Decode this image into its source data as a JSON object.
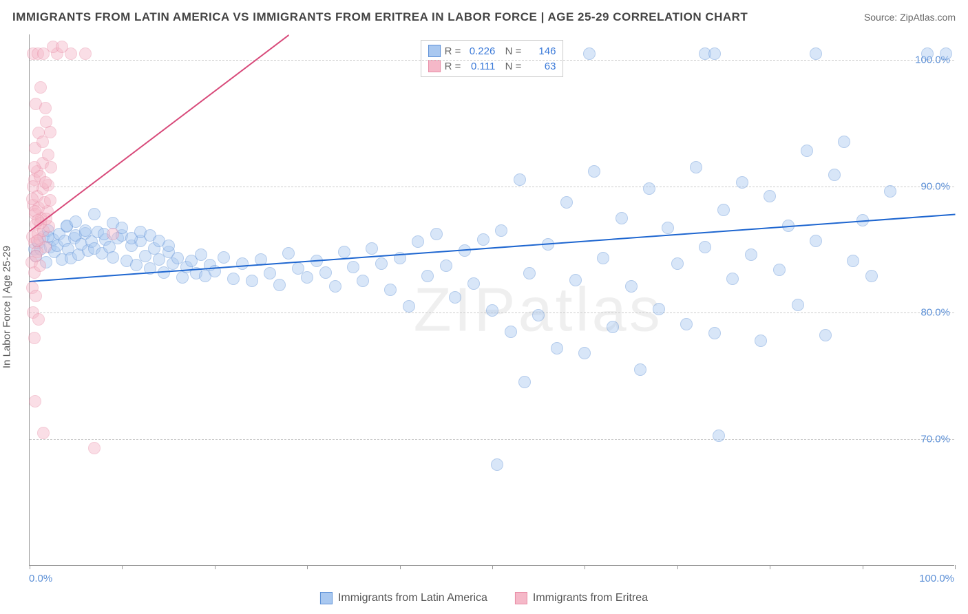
{
  "header": {
    "title": "IMMIGRANTS FROM LATIN AMERICA VS IMMIGRANTS FROM ERITREA IN LABOR FORCE | AGE 25-29 CORRELATION CHART",
    "source": "Source: ZipAtlas.com"
  },
  "chart": {
    "type": "scatter",
    "y_label": "In Labor Force | Age 25-29",
    "xlim": [
      0,
      100
    ],
    "ylim": [
      60,
      102
    ],
    "x_ticks": [
      0,
      10,
      20,
      30,
      40,
      50,
      60,
      70,
      80,
      90,
      100
    ],
    "y_ticks": [
      70,
      80,
      90,
      100
    ],
    "x_tick_labels": {
      "min": "0.0%",
      "max": "100.0%"
    },
    "y_tick_labels": [
      "70.0%",
      "80.0%",
      "90.0%",
      "100.0%"
    ],
    "grid_color": "#cccccc",
    "axis_color": "#999999",
    "background_color": "#ffffff",
    "marker_radius": 9,
    "marker_opacity": 0.45,
    "watermark": "ZIPatlas",
    "series": [
      {
        "name": "Immigrants from Latin America",
        "color_fill": "#a9c8f0",
        "color_stroke": "#5b8fd6",
        "trend": {
          "x1": 0,
          "y1": 82.5,
          "x2": 100,
          "y2": 87.8,
          "color": "#1e66d0",
          "width": 2,
          "dashed": false
        },
        "stats": {
          "R": "0.226",
          "N": "146"
        },
        "points": [
          [
            0.5,
            85
          ],
          [
            0.7,
            84.5
          ],
          [
            1,
            85.5
          ],
          [
            1.2,
            85
          ],
          [
            1.5,
            86
          ],
          [
            1.8,
            84
          ],
          [
            2,
            86.5
          ],
          [
            2.2,
            85.2
          ],
          [
            2.5,
            85.8
          ],
          [
            2.7,
            84.8
          ],
          [
            3,
            85.3
          ],
          [
            3.2,
            86.2
          ],
          [
            3.5,
            84.2
          ],
          [
            3.8,
            85.7
          ],
          [
            4,
            86.8
          ],
          [
            4.2,
            85
          ],
          [
            4.5,
            84.3
          ],
          [
            4.8,
            85.9
          ],
          [
            5,
            86.1
          ],
          [
            5.3,
            84.6
          ],
          [
            5.6,
            85.4
          ],
          [
            6,
            86.3
          ],
          [
            6.3,
            84.9
          ],
          [
            6.7,
            85.6
          ],
          [
            7,
            85.1
          ],
          [
            7.4,
            86.4
          ],
          [
            7.8,
            84.7
          ],
          [
            8.2,
            85.8
          ],
          [
            8.6,
            85.2
          ],
          [
            9,
            84.4
          ],
          [
            9.5,
            85.9
          ],
          [
            10,
            86.1
          ],
          [
            10.5,
            84.1
          ],
          [
            11,
            85.3
          ],
          [
            11.5,
            83.8
          ],
          [
            12,
            85.7
          ],
          [
            12.5,
            84.5
          ],
          [
            13,
            83.5
          ],
          [
            13.5,
            85.1
          ],
          [
            14,
            84.2
          ],
          [
            14.5,
            83.2
          ],
          [
            15,
            84.8
          ],
          [
            15.5,
            83.9
          ],
          [
            16,
            84.3
          ],
          [
            16.5,
            82.8
          ],
          [
            17,
            83.6
          ],
          [
            17.5,
            84.1
          ],
          [
            18,
            83.1
          ],
          [
            18.5,
            84.6
          ],
          [
            19,
            82.9
          ],
          [
            19.5,
            83.8
          ],
          [
            20,
            83.3
          ],
          [
            21,
            84.4
          ],
          [
            22,
            82.7
          ],
          [
            23,
            83.9
          ],
          [
            24,
            82.5
          ],
          [
            25,
            84.2
          ],
          [
            26,
            83.1
          ],
          [
            27,
            82.2
          ],
          [
            28,
            84.7
          ],
          [
            29,
            83.5
          ],
          [
            30,
            82.8
          ],
          [
            31,
            84.1
          ],
          [
            32,
            83.2
          ],
          [
            33,
            82.1
          ],
          [
            34,
            84.8
          ],
          [
            35,
            83.6
          ],
          [
            36,
            82.5
          ],
          [
            37,
            85.1
          ],
          [
            38,
            83.9
          ],
          [
            39,
            81.8
          ],
          [
            40,
            84.3
          ],
          [
            41,
            80.5
          ],
          [
            42,
            85.6
          ],
          [
            43,
            82.9
          ],
          [
            44,
            86.2
          ],
          [
            45,
            83.7
          ],
          [
            46,
            81.2
          ],
          [
            47,
            84.9
          ],
          [
            48,
            82.3
          ],
          [
            49,
            85.8
          ],
          [
            50,
            80.2
          ],
          [
            50.5,
            68
          ],
          [
            51,
            86.5
          ],
          [
            52,
            78.5
          ],
          [
            53,
            90.5
          ],
          [
            53.5,
            74.5
          ],
          [
            54,
            83.1
          ],
          [
            55,
            79.8
          ],
          [
            56,
            85.4
          ],
          [
            57,
            77.2
          ],
          [
            58,
            88.7
          ],
          [
            59,
            82.6
          ],
          [
            60,
            76.8
          ],
          [
            60.5,
            100.5
          ],
          [
            61,
            91.2
          ],
          [
            62,
            84.3
          ],
          [
            63,
            78.9
          ],
          [
            64,
            87.5
          ],
          [
            65,
            82.1
          ],
          [
            66,
            75.5
          ],
          [
            67,
            89.8
          ],
          [
            68,
            80.3
          ],
          [
            69,
            86.7
          ],
          [
            70,
            83.9
          ],
          [
            71,
            79.1
          ],
          [
            72,
            91.5
          ],
          [
            73,
            85.2
          ],
          [
            74,
            78.4
          ],
          [
            74.5,
            70.3
          ],
          [
            75,
            88.1
          ],
          [
            76,
            82.7
          ],
          [
            77,
            90.3
          ],
          [
            78,
            84.6
          ],
          [
            79,
            77.8
          ],
          [
            80,
            89.2
          ],
          [
            81,
            83.4
          ],
          [
            82,
            86.9
          ],
          [
            83,
            80.6
          ],
          [
            84,
            92.8
          ],
          [
            85,
            85.7
          ],
          [
            86,
            78.2
          ],
          [
            87,
            90.9
          ],
          [
            88,
            93.5
          ],
          [
            89,
            84.1
          ],
          [
            90,
            87.3
          ],
          [
            91,
            82.9
          ],
          [
            93,
            89.6
          ],
          [
            85,
            100.5
          ],
          [
            97,
            100.5
          ],
          [
            73,
            100.5
          ],
          [
            74,
            100.5
          ],
          [
            99,
            100.5
          ],
          [
            4,
            86.9
          ],
          [
            5,
            87.2
          ],
          [
            6,
            86.5
          ],
          [
            7,
            87.8
          ],
          [
            8,
            86.2
          ],
          [
            9,
            87.1
          ],
          [
            10,
            86.7
          ],
          [
            11,
            85.9
          ],
          [
            12,
            86.4
          ],
          [
            13,
            86.1
          ],
          [
            14,
            85.7
          ],
          [
            15,
            85.3
          ],
          [
            2,
            86
          ]
        ]
      },
      {
        "name": "Immigrants from Eritrea",
        "color_fill": "#f5b8c8",
        "color_stroke": "#e88ba5",
        "trend": {
          "x1": 0,
          "y1": 86.5,
          "x2": 28,
          "y2": 102,
          "color": "#d84a7a",
          "width": 2,
          "dashed": false
        },
        "trend_extend": {
          "x1": 14.5,
          "y1": 94.5,
          "x2": 28,
          "y2": 102,
          "color": "#d84a7a",
          "width": 1,
          "dashed": true
        },
        "stats": {
          "R": "0.111",
          "N": "63"
        },
        "points": [
          [
            0.3,
            86
          ],
          [
            0.5,
            85.5
          ],
          [
            0.7,
            87
          ],
          [
            0.9,
            86.2
          ],
          [
            1.1,
            85.8
          ],
          [
            1.3,
            87.5
          ],
          [
            1.5,
            86.5
          ],
          [
            1.7,
            85.2
          ],
          [
            1.9,
            88
          ],
          [
            2.1,
            86.8
          ],
          [
            0.4,
            88.5
          ],
          [
            0.6,
            87.8
          ],
          [
            0.8,
            89.2
          ],
          [
            1,
            88.3
          ],
          [
            1.2,
            87.1
          ],
          [
            1.4,
            89.8
          ],
          [
            1.6,
            88.7
          ],
          [
            1.8,
            87.4
          ],
          [
            2,
            90.1
          ],
          [
            2.2,
            88.9
          ],
          [
            0.5,
            90.5
          ],
          [
            0.8,
            91.2
          ],
          [
            1.1,
            90.8
          ],
          [
            1.4,
            91.8
          ],
          [
            1.7,
            90.3
          ],
          [
            2,
            92.5
          ],
          [
            2.3,
            91.5
          ],
          [
            0.6,
            93
          ],
          [
            1,
            94.2
          ],
          [
            1.4,
            93.5
          ],
          [
            1.8,
            95.1
          ],
          [
            2.2,
            94.3
          ],
          [
            0.7,
            96.5
          ],
          [
            1.2,
            97.8
          ],
          [
            1.7,
            96.2
          ],
          [
            0.4,
            100.5
          ],
          [
            0.9,
            100.5
          ],
          [
            1.5,
            100.5
          ],
          [
            3,
            100.5
          ],
          [
            4.5,
            100.5
          ],
          [
            6,
            100.5
          ],
          [
            0.2,
            84
          ],
          [
            0.5,
            83.2
          ],
          [
            0.8,
            84.8
          ],
          [
            1.1,
            83.7
          ],
          [
            0.3,
            82
          ],
          [
            0.7,
            81.3
          ],
          [
            0.4,
            80
          ],
          [
            1.5,
            70.5
          ],
          [
            0.6,
            73
          ],
          [
            7,
            69.3
          ],
          [
            0.5,
            78
          ],
          [
            1,
            79.5
          ],
          [
            2.5,
            101
          ],
          [
            3.5,
            101
          ],
          [
            9,
            86.2
          ],
          [
            0.3,
            89
          ],
          [
            0.4,
            90
          ],
          [
            0.5,
            91.5
          ],
          [
            0.6,
            88
          ],
          [
            0.7,
            84.5
          ],
          [
            0.8,
            85.7
          ],
          [
            0.9,
            87.3
          ]
        ]
      }
    ],
    "legend_stats": [
      {
        "swatch_fill": "#a9c8f0",
        "swatch_stroke": "#5b8fd6",
        "R": "0.226",
        "N": "146"
      },
      {
        "swatch_fill": "#f5b8c8",
        "swatch_stroke": "#e88ba5",
        "R": "0.111",
        "N": "63"
      }
    ],
    "bottom_legend": [
      {
        "swatch_fill": "#a9c8f0",
        "swatch_stroke": "#5b8fd6",
        "label": "Immigrants from Latin America"
      },
      {
        "swatch_fill": "#f5b8c8",
        "swatch_stroke": "#e88ba5",
        "label": "Immigrants from Eritrea"
      }
    ]
  }
}
